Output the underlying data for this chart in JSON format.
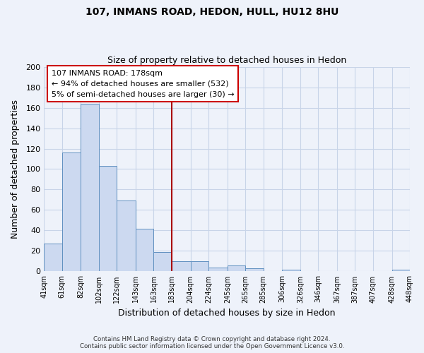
{
  "title": "107, INMANS ROAD, HEDON, HULL, HU12 8HU",
  "subtitle": "Size of property relative to detached houses in Hedon",
  "xlabel": "Distribution of detached houses by size in Hedon",
  "ylabel": "Number of detached properties",
  "bar_color": "#ccd9f0",
  "bar_edge_color": "#6090c0",
  "background_color": "#eef2fa",
  "grid_color": "#c8d4e8",
  "vline_x": 183,
  "vline_color": "#aa0000",
  "bin_edges": [
    41,
    61,
    82,
    102,
    122,
    143,
    163,
    183,
    204,
    224,
    245,
    265,
    285,
    306,
    326,
    346,
    367,
    387,
    407,
    428,
    448
  ],
  "bar_heights": [
    27,
    116,
    164,
    103,
    69,
    42,
    19,
    10,
    10,
    4,
    6,
    3,
    0,
    2,
    0,
    0,
    0,
    0,
    0,
    2
  ],
  "tick_labels": [
    "41sqm",
    "61sqm",
    "82sqm",
    "102sqm",
    "122sqm",
    "143sqm",
    "163sqm",
    "183sqm",
    "204sqm",
    "224sqm",
    "245sqm",
    "265sqm",
    "285sqm",
    "306sqm",
    "326sqm",
    "346sqm",
    "367sqm",
    "387sqm",
    "407sqm",
    "428sqm",
    "448sqm"
  ],
  "ylim": [
    0,
    200
  ],
  "yticks": [
    0,
    20,
    40,
    60,
    80,
    100,
    120,
    140,
    160,
    180,
    200
  ],
  "annotation_title": "107 INMANS ROAD: 178sqm",
  "annotation_line1": "← 94% of detached houses are smaller (532)",
  "annotation_line2": "5% of semi-detached houses are larger (30) →",
  "footer_line1": "Contains HM Land Registry data © Crown copyright and database right 2024.",
  "footer_line2": "Contains public sector information licensed under the Open Government Licence v3.0."
}
